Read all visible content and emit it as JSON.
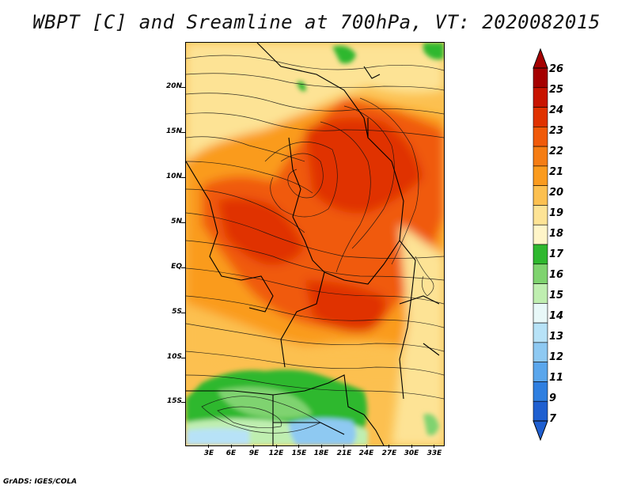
{
  "title": "WBPT [C] and Sreamline at 700hPa, VT: 2020082015",
  "footer": "GrADS: IGES/COLA",
  "axes": {
    "lat_labels": [
      "20N",
      "15N",
      "10N",
      "5N",
      "EQ",
      "5S",
      "10S",
      "15S"
    ],
    "lon_labels": [
      "3E",
      "6E",
      "9E",
      "12E",
      "15E",
      "18E",
      "21E",
      "24E",
      "27E",
      "30E",
      "33E"
    ]
  },
  "colorbar": {
    "labels": [
      "26",
      "25",
      "24",
      "23",
      "22",
      "21",
      "20",
      "19",
      "18",
      "17",
      "16",
      "15",
      "14",
      "13",
      "12",
      "11",
      "9",
      "7"
    ],
    "colors": [
      "#a50000",
      "#c81400",
      "#e03200",
      "#f05a0a",
      "#f57d14",
      "#fa9b1e",
      "#fcc050",
      "#fde395",
      "#fff5c8",
      "#2fb82f",
      "#7fd36f",
      "#bfeeb0",
      "#e8f8f8",
      "#b7e2f7",
      "#8ec9f2",
      "#5aa6ec",
      "#2f7fe0",
      "#1f5fd0"
    ]
  },
  "legend_colors": {
    "deep_red": "#c81400",
    "red_orange": "#e64a00",
    "orange": "#f57d14",
    "light_orange": "#fa9b1e",
    "tan": "#fcc050",
    "pale": "#fde395",
    "green": "#2fb82f",
    "light_green": "#7fd36f",
    "pale_green": "#bfeeb0",
    "light_blue": "#b7e2f7",
    "blue": "#8ec9f2"
  }
}
